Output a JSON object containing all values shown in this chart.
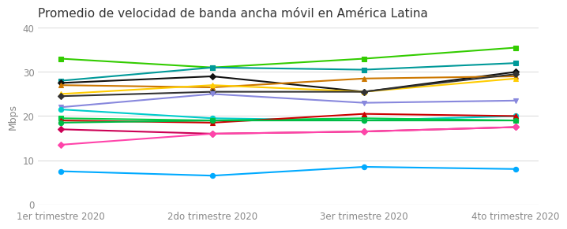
{
  "title": "Promedio de velocidad de banda ancha móvil en América Latina",
  "xlabel_ticks": [
    "1er trimestre 2020",
    "2do trimestre 2020",
    "3er trimestre 2020",
    "4to trimestre 2020"
  ],
  "ylabel": "Mbps",
  "ylim": [
    0,
    40
  ],
  "yticks": [
    0,
    10,
    20,
    30,
    40
  ],
  "series": [
    {
      "values": [
        33,
        31,
        33,
        35.5
      ],
      "color": "#33cc00",
      "marker": "s",
      "lw": 1.5
    },
    {
      "values": [
        28,
        31,
        30.5,
        32
      ],
      "color": "#009999",
      "marker": "s",
      "lw": 1.5
    },
    {
      "values": [
        27.5,
        29,
        25.5,
        30
      ],
      "color": "#111111",
      "marker": "D",
      "lw": 1.5
    },
    {
      "values": [
        27,
        26.5,
        28.5,
        29
      ],
      "color": "#cc7700",
      "marker": "^",
      "lw": 1.5
    },
    {
      "values": [
        25,
        27,
        25.5,
        28.5
      ],
      "color": "#ffcc00",
      "marker": "^",
      "lw": 1.5
    },
    {
      "values": [
        24.5,
        25.5,
        25.5,
        29.5
      ],
      "color": "#333333",
      "marker": "D",
      "lw": 1.5
    },
    {
      "values": [
        22,
        25,
        23,
        23.5
      ],
      "color": "#8888dd",
      "marker": "v",
      "lw": 1.5
    },
    {
      "values": [
        21.5,
        19.5,
        19,
        20
      ],
      "color": "#00cccc",
      "marker": "o",
      "lw": 1.5
    },
    {
      "values": [
        19.5,
        19,
        19.5,
        19
      ],
      "color": "#00cc44",
      "marker": "s",
      "lw": 1.5
    },
    {
      "values": [
        19,
        18.5,
        20.5,
        20
      ],
      "color": "#cc0000",
      "marker": "^",
      "lw": 1.5
    },
    {
      "values": [
        18.5,
        19,
        19,
        19
      ],
      "color": "#00bb44",
      "marker": "o",
      "lw": 1.5
    },
    {
      "values": [
        17,
        16,
        16.5,
        17.5
      ],
      "color": "#cc0055",
      "marker": "D",
      "lw": 1.5
    },
    {
      "values": [
        13.5,
        16,
        16.5,
        17.5
      ],
      "color": "#ff44aa",
      "marker": "D",
      "lw": 1.5
    },
    {
      "values": [
        7.5,
        6.5,
        8.5,
        8
      ],
      "color": "#00aaff",
      "marker": "o",
      "lw": 1.5
    }
  ]
}
